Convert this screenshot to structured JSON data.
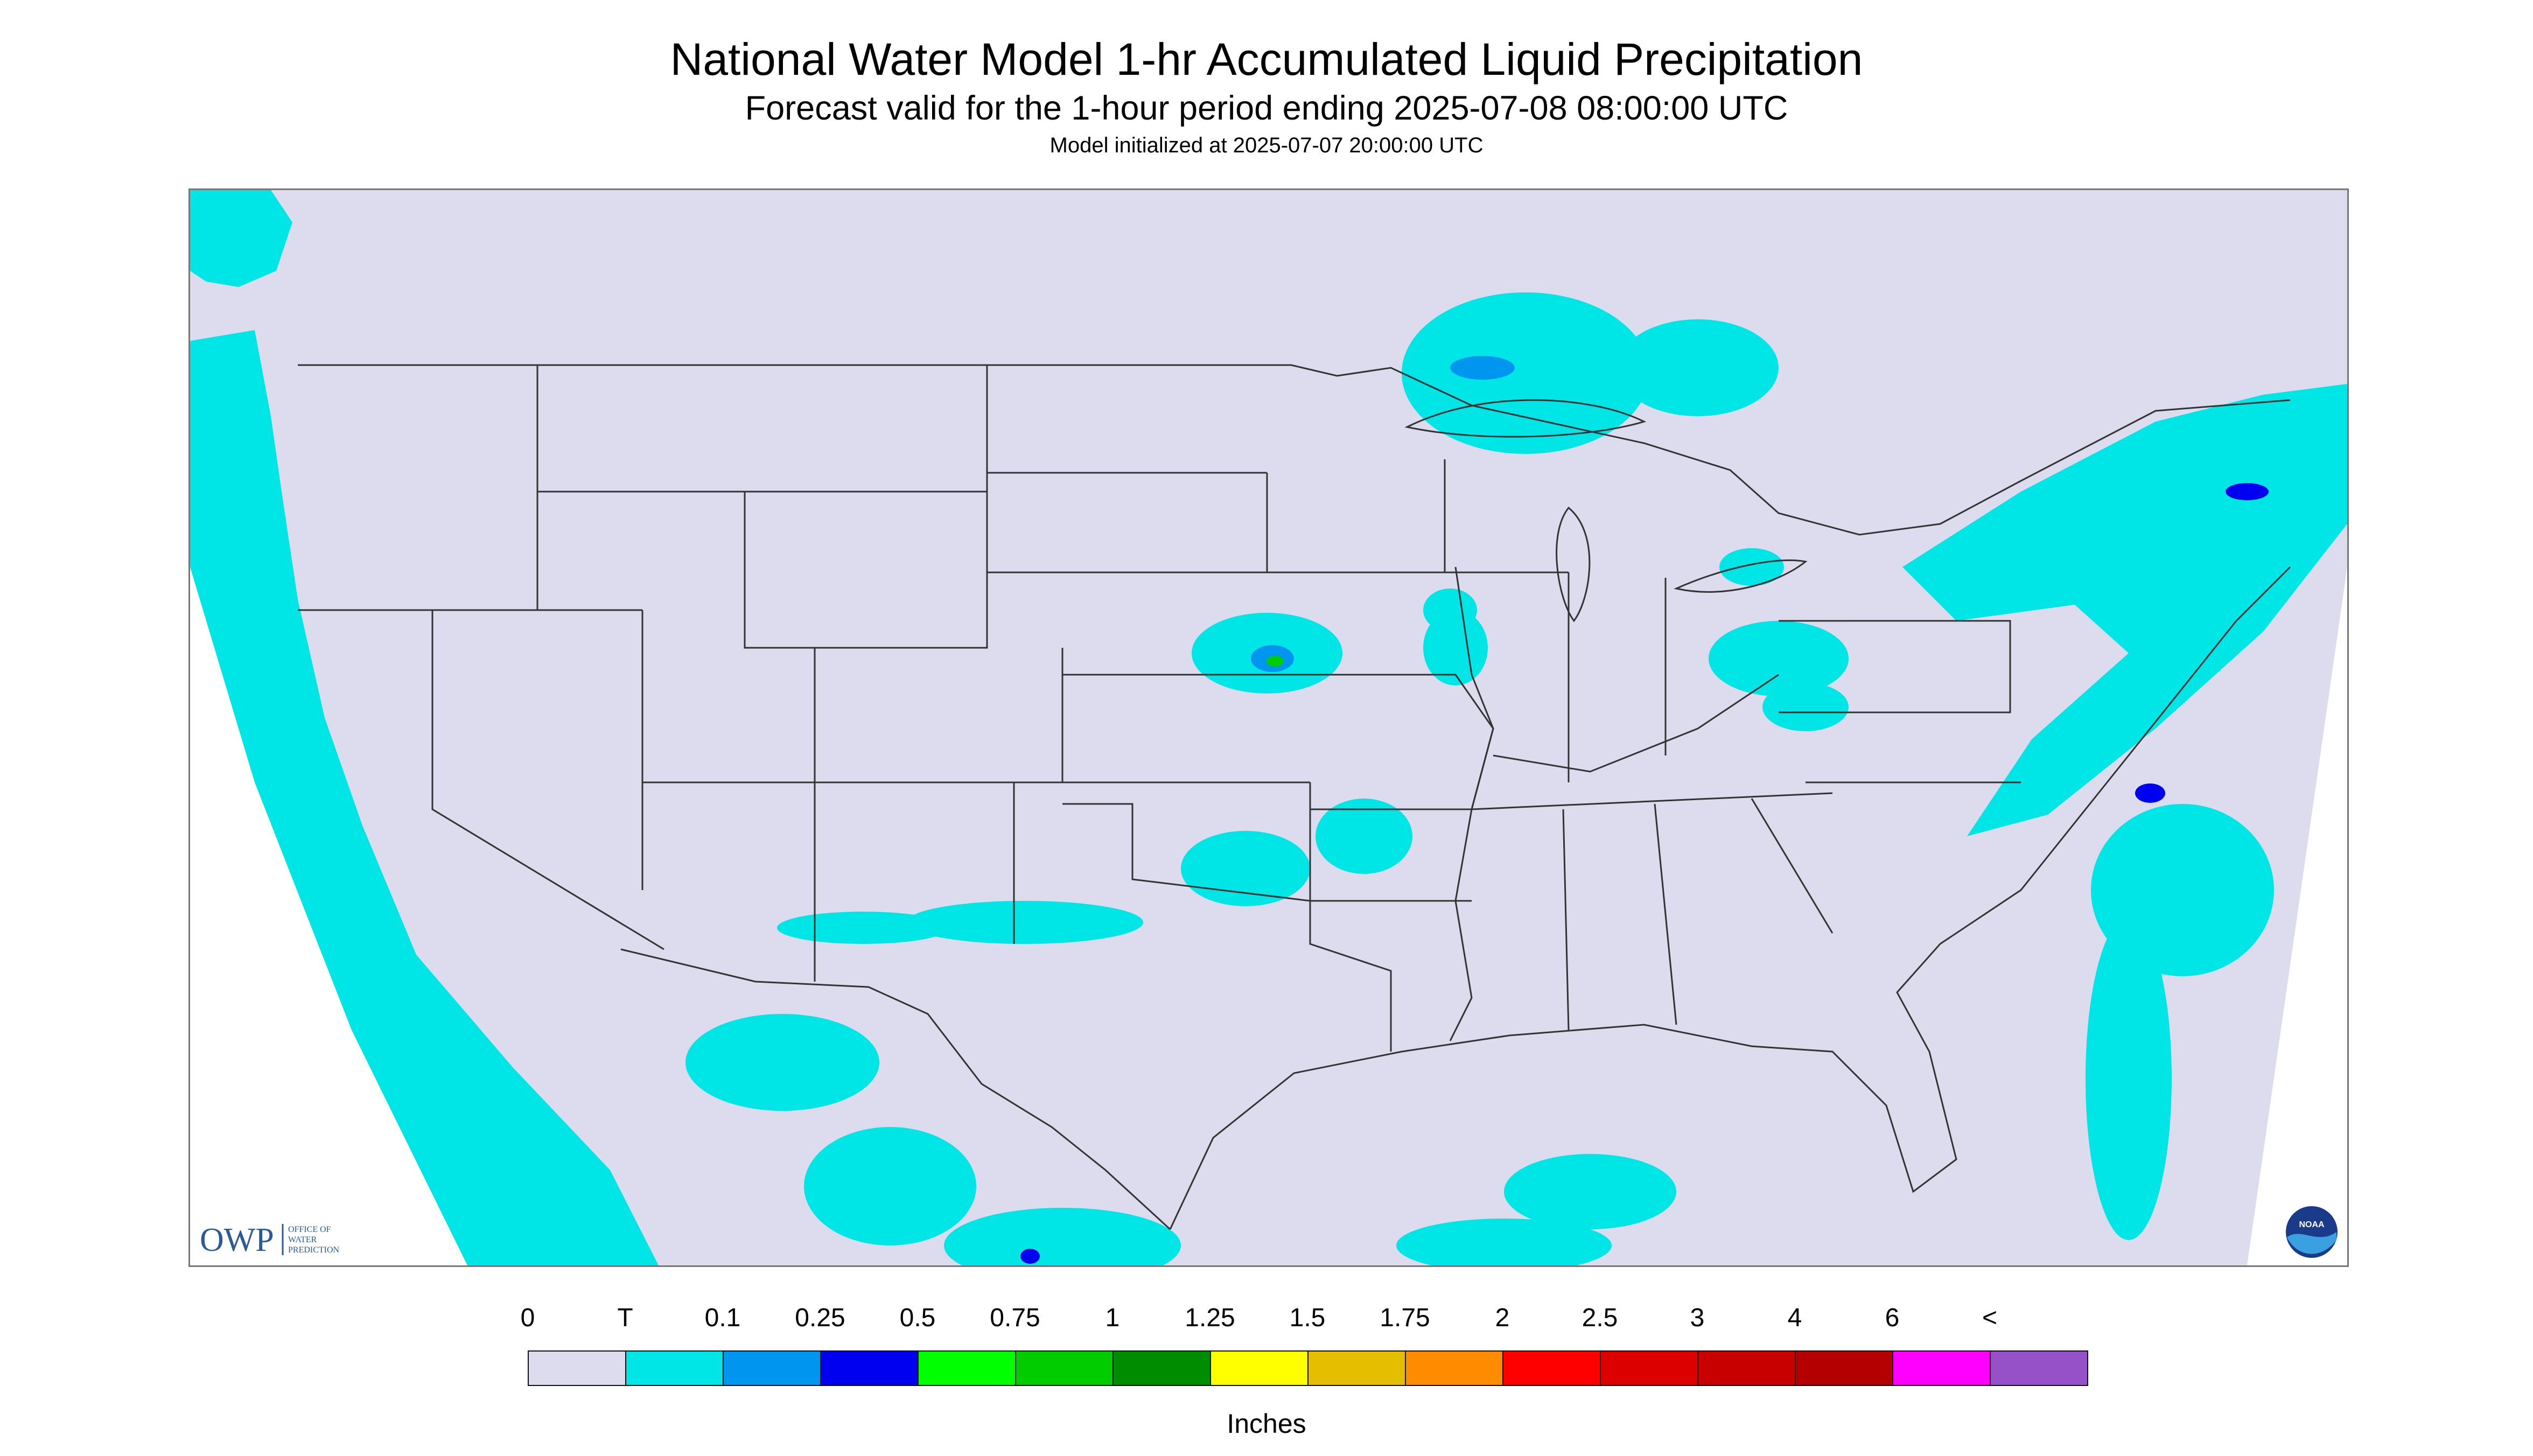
{
  "header": {
    "title": "National Water Model 1-hr Accumulated Liquid Precipitation",
    "subtitle": "Forecast valid for the 1-hour period ending 2025-07-08 08:00:00 UTC",
    "init_line": "Model initialized at 2025-07-07 20:00:00 UTC"
  },
  "logos": {
    "owp_mark": "OWP",
    "owp_text": [
      "OFFICE OF",
      "WATER",
      "PREDICTION"
    ],
    "noaa_mark": "NOAA"
  },
  "legend": {
    "labels": [
      "0",
      "T",
      "0.1",
      "0.25",
      "0.5",
      "0.75",
      "1",
      "1.25",
      "1.5",
      "1.75",
      "2",
      "2.5",
      "3",
      "4",
      "6",
      "<"
    ],
    "colors": [
      "#dcdcee",
      "#00e5e5",
      "#0096f0",
      "#0000f0",
      "#00ff00",
      "#00cc00",
      "#008c00",
      "#ffff00",
      "#e6be00",
      "#ff8c00",
      "#ff0000",
      "#dc0000",
      "#c80000",
      "#b40000",
      "#ff00ff",
      "#9650c8"
    ],
    "units": "Inches"
  },
  "map_style": {
    "background": "#dcdcee",
    "boundary": "#333333",
    "precip_light": "#00e5e5",
    "precip_med": "#0096f0",
    "precip_heavy": "#0000f0",
    "precip_green": "#00cc00"
  }
}
